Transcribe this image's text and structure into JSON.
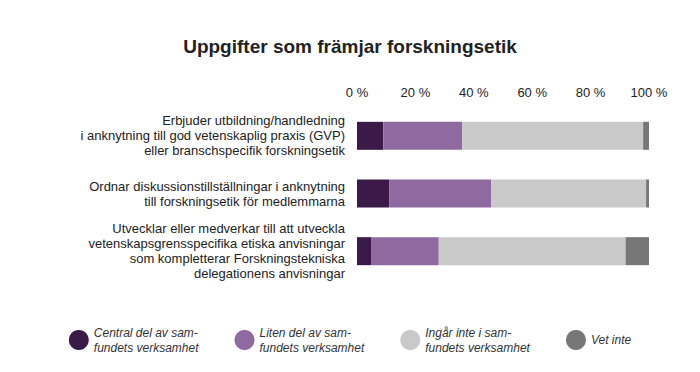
{
  "chart_data": {
    "type": "bar",
    "title": "Uppgifter som främjar forskningsetik",
    "orientation": "horizontal",
    "stacked": true,
    "grid": false,
    "legend": "bottom",
    "categories": [
      "Erbjuder utbildning/handledning\ni anknytning till god vetenskaplig praxis (GVP)\neller branschspecifik forskningsetik",
      "Ordnar diskussionstillställningar i anknytning\ntill forskningsetik för medlemmarna",
      "Utvecklar eller medverkar till att utveckla\nvetenskapsgrensspecifika etiska anvisningar\nsom kompletterar Forskningstekniska\ndelegationens anvisningar"
    ],
    "series": [
      {
        "name": "Central del av sam-\nfundets verksamhet",
        "color": "#3b1a4a",
        "values": [
          9,
          11,
          5
        ]
      },
      {
        "name": "Liten del av sam-\nfundets verksamhet",
        "color": "#8f6aa1",
        "values": [
          27,
          35,
          23
        ]
      },
      {
        "name": "Ingår inte i sam-\nfundets verksamhet",
        "color": "#c9c9c9",
        "values": [
          62,
          53,
          64
        ]
      },
      {
        "name": "Vet inte",
        "color": "#777777",
        "values": [
          2,
          1,
          8
        ]
      }
    ],
    "xlim": [
      0,
      100
    ],
    "xticks": [
      {
        "value": 0,
        "label": "0 %"
      },
      {
        "value": 20,
        "label": "20 %"
      },
      {
        "value": 40,
        "label": "40 %"
      },
      {
        "value": 60,
        "label": "60 %"
      },
      {
        "value": 80,
        "label": "80 %"
      },
      {
        "value": 100,
        "label": "100 %"
      }
    ]
  }
}
